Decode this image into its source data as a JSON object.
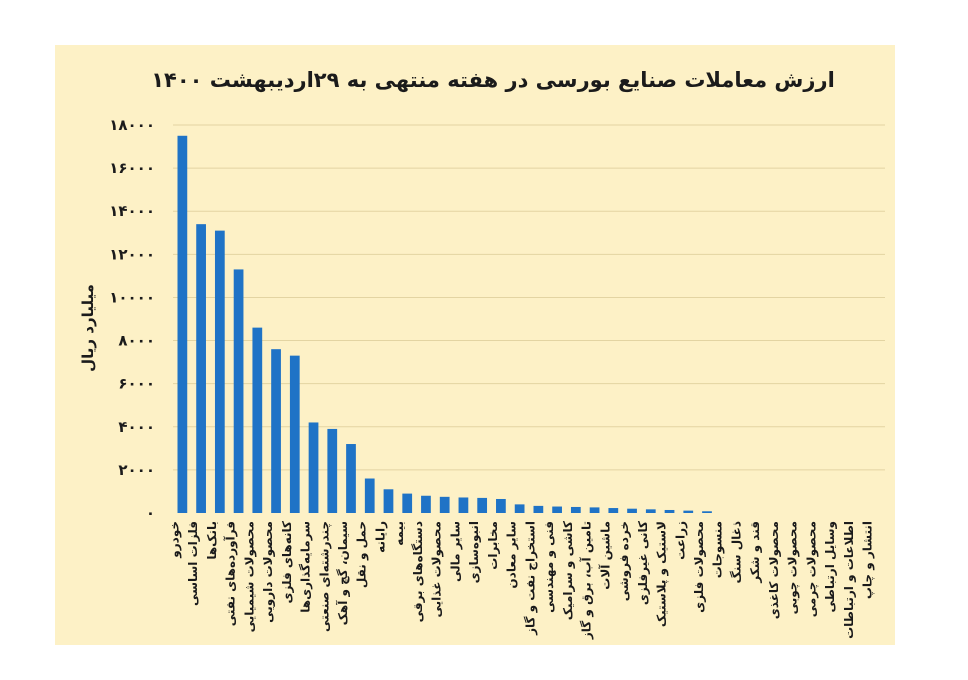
{
  "chart_data": {
    "type": "bar",
    "title": "ارزش معاملات صنایع بورسی در هفته منتهی به ۲۹اردیبهشت ۱۴۰۰",
    "ylabel": "میلیارد ریال",
    "xlabel": "",
    "ylim": [
      0,
      18000
    ],
    "yticks": [
      0,
      2000,
      4000,
      6000,
      8000,
      10000,
      12000,
      14000,
      16000,
      18000
    ],
    "ytick_labels": [
      "۰",
      "۲۰۰۰",
      "۴۰۰۰",
      "۶۰۰۰",
      "۸۰۰۰",
      "۱۰۰۰۰",
      "۱۲۰۰۰",
      "۱۴۰۰۰",
      "۱۶۰۰۰",
      "۱۸۰۰۰"
    ],
    "grid": true,
    "legend": "none",
    "bar_color": "#1f73c6",
    "background": "#fdf1c6",
    "categories": [
      "خودرو",
      "فلزات اساسی",
      "بانک‌ها",
      "فرآورده‌های نفتی",
      "محصولات شیمیایی",
      "محصولات دارویی",
      "کانه‌های فلزی",
      "سرمایه‌گذاری‌ها",
      "چندرشته‌ای صنعتی",
      "سیمان، گچ و آهک",
      "حمل و نقل",
      "رایانه",
      "بیمه",
      "دستگاه‌های برقی",
      "محصولات غذایی",
      "سایر مالی",
      "انبوه‌سازی",
      "مخابرات",
      "سایر معادن",
      "استخراج نفت و گاز",
      "فنی و مهندسی",
      "کاشی و سرامیک",
      "تامین آب، برق و گاز",
      "ماشین آلات",
      "خرده فروشی",
      "کانی غیرفلزی",
      "لاستیک و پلاستیک",
      "زراعت",
      "محصولات فلزی",
      "منسوجات",
      "ذغال سنگ",
      "قند و شکر",
      "محصولات کاغذی",
      "محصولات چوبی",
      "محصولات چرمی",
      "وسایل ارتباطی",
      "اطلاعات و ارتباطات",
      "انتشار و چاپ"
    ],
    "values": [
      17500,
      13400,
      13100,
      11300,
      8600,
      7600,
      7300,
      4200,
      3900,
      3200,
      1600,
      1100,
      900,
      800,
      750,
      720,
      700,
      650,
      400,
      330,
      300,
      280,
      260,
      230,
      200,
      170,
      140,
      110,
      80,
      0,
      0,
      0,
      0,
      0,
      0,
      0,
      0,
      0
    ]
  }
}
